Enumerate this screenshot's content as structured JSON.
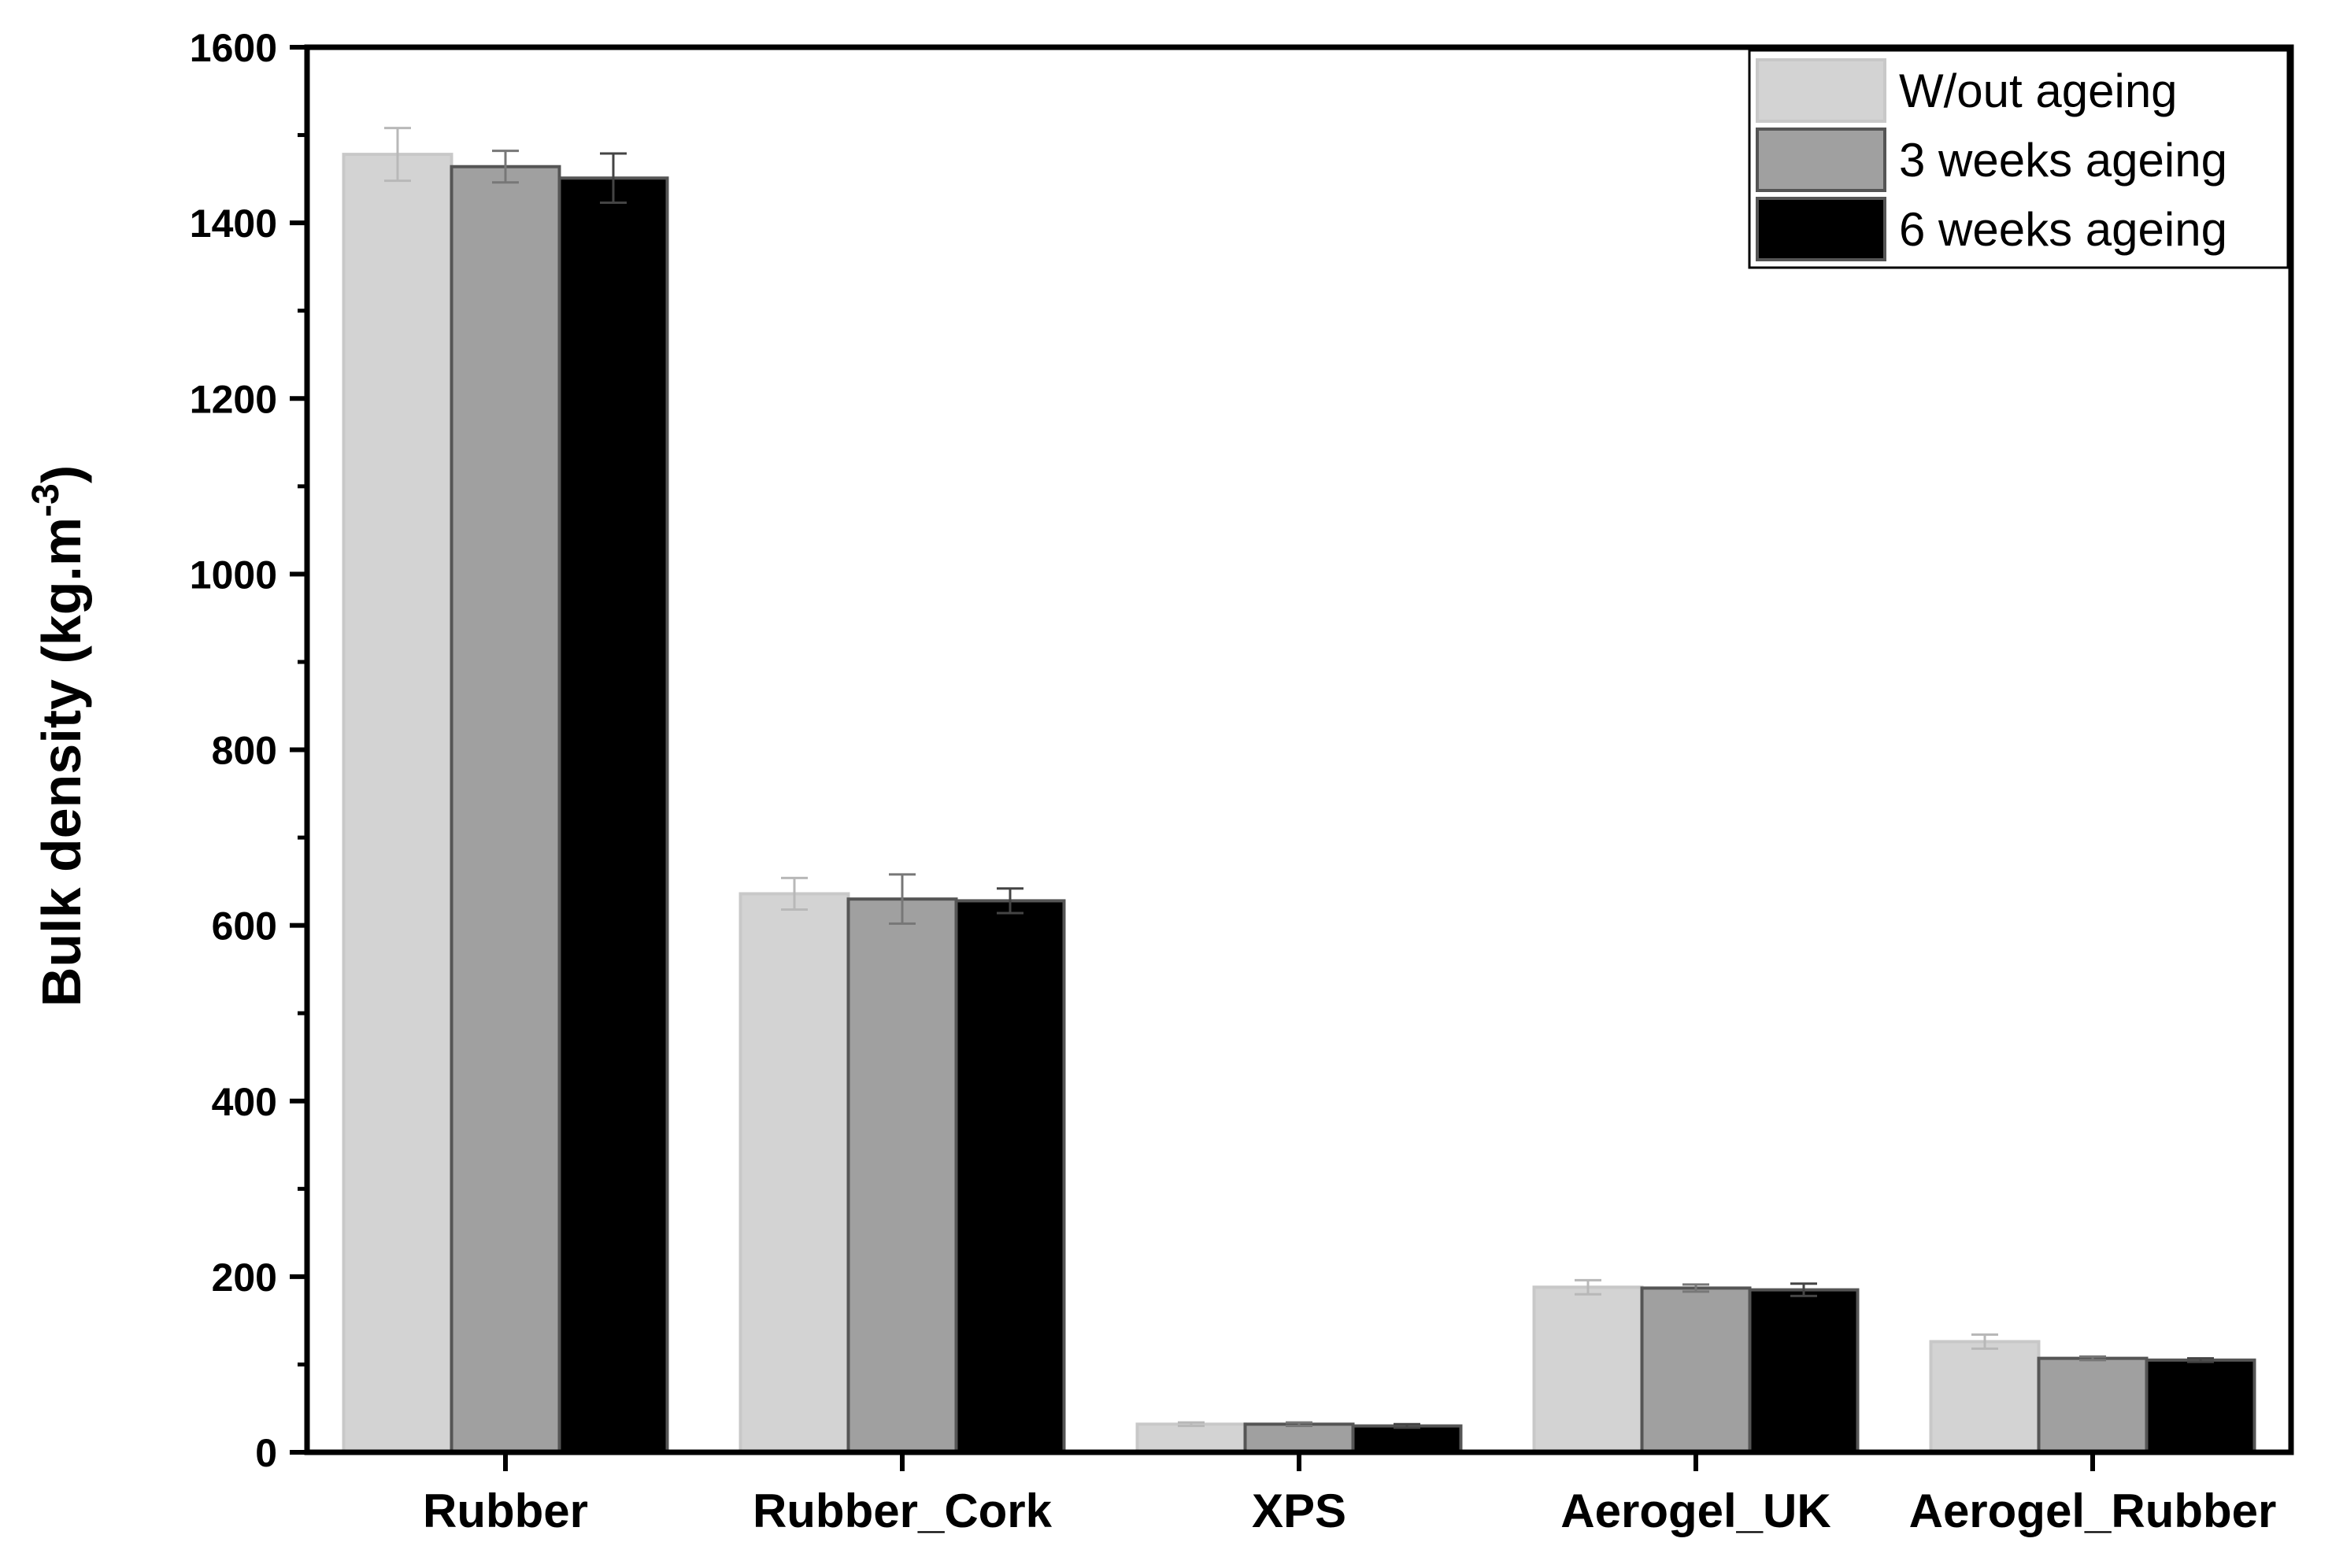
{
  "chart_data": {
    "type": "bar",
    "title": "",
    "xlabel": "",
    "ylabel": {
      "main": "Bulk density (kg.m",
      "superscript": "-3",
      "close": ")"
    },
    "ylim": [
      0,
      1600
    ],
    "yticks": [
      "0",
      "200",
      "400",
      "600",
      "800",
      "1000",
      "1200",
      "1400",
      "1600"
    ],
    "categories": [
      "Rubber",
      "Rubber_Cork",
      "XPS",
      "Aerogel_UK",
      "Aerogel_Rubber"
    ],
    "series": [
      {
        "name": "W/out ageing",
        "color": "#d3d3d3",
        "values": [
          1478,
          636,
          32,
          188,
          126
        ],
        "errors": [
          30,
          18,
          2,
          8,
          8
        ]
      },
      {
        "name": "3 weeks ageing",
        "color": "#a0a0a0",
        "values": [
          1464,
          630,
          32,
          187,
          107
        ],
        "errors": [
          18,
          28,
          2,
          4,
          2
        ]
      },
      {
        "name": "6 weeks ageing",
        "color": "#000000",
        "values": [
          1451,
          628,
          30,
          185,
          105
        ],
        "errors": [
          28,
          14,
          2,
          7,
          2
        ]
      }
    ],
    "grid": false,
    "legend_position": "top-right",
    "error_bars": true
  }
}
